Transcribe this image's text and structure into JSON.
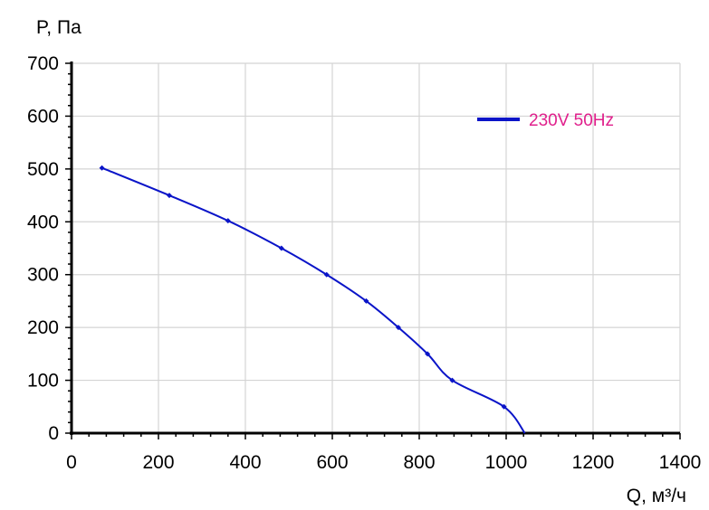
{
  "chart_data": {
    "type": "line",
    "ylabel": "P, Па",
    "xlabel": "Q, м³/ч",
    "xlim": [
      0,
      1400
    ],
    "ylim": [
      0,
      700
    ],
    "x_ticks": [
      0,
      200,
      400,
      600,
      800,
      1000,
      1200,
      1400
    ],
    "y_ticks": [
      0,
      100,
      200,
      300,
      400,
      500,
      600,
      700
    ],
    "grid": true,
    "legend_position": "top-right",
    "series": [
      {
        "name": "230V 50Hz",
        "color": "#0a14c8",
        "label_color": "#e0208c",
        "markers": [
          [
            70,
            502
          ],
          [
            225,
            450
          ],
          [
            360,
            402
          ],
          [
            483,
            350
          ],
          [
            587,
            300
          ],
          [
            678,
            250
          ],
          [
            752,
            200
          ],
          [
            819,
            150
          ],
          [
            876,
            100
          ],
          [
            995,
            50
          ]
        ],
        "endpoint": [
          1043,
          0
        ]
      }
    ]
  }
}
